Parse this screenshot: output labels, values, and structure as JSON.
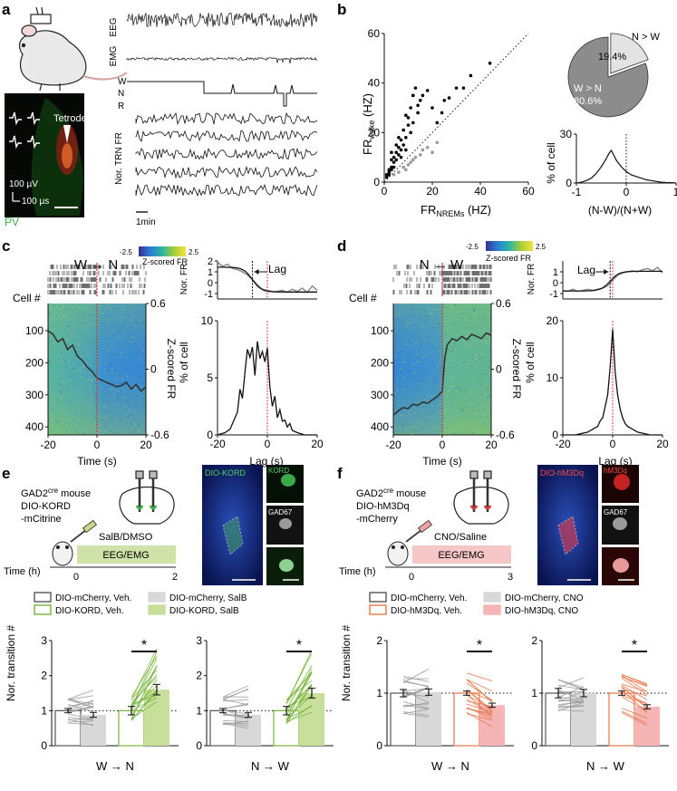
{
  "panels": {
    "a": {
      "label": "a",
      "traces": [
        "EEG",
        "EMG"
      ],
      "hypnogram": [
        "W",
        "N",
        "R"
      ],
      "trace_ylabel": "Nor. TRN FR",
      "scale_time": "1min",
      "scale_amp": "100 µV",
      "scale_dur": "100 µs",
      "histology_label": "Tetrode",
      "stain": "PV"
    },
    "b": {
      "label": "b",
      "pie_small_label": "N > W",
      "pie_small_pct": "19.4%",
      "pie_big_label": "W > N",
      "pie_big_pct": "80.6%"
    },
    "c": {
      "label": "c",
      "title": "W → N",
      "colorbar_min": "-2.5",
      "colorbar_max": "2.5",
      "colorbar_label": "Z-scored FR",
      "row_label": "Cell #",
      "heat_ylabel": "Z-scored FR",
      "heat_xlabel": "Time (s)",
      "nor_fr_label": "Nor. FR",
      "lag_annot": "Lag",
      "pct_label": "% of cell",
      "lag_xlabel": "Lag (s)"
    },
    "d": {
      "label": "d",
      "title": "N → W",
      "colorbar_min": "-2.5",
      "colorbar_max": "2.5",
      "colorbar_label": "Z-scored FR",
      "row_label": "Cell #",
      "heat_ylabel": "Z-scored FR",
      "heat_xlabel": "Time (s)",
      "nor_fr_label": "Nor. FR",
      "lag_annot": "Lag",
      "pct_label": "% of cell",
      "lag_xlabel": "Lag (s)"
    },
    "e": {
      "label": "e",
      "mouse_line1": "GAD2",
      "mouse_sup": "cre",
      "mouse_line1_tail": " mouse",
      "virus_line1": "DIO-KORD",
      "virus_line2": "-mCitrine",
      "drug": "SalB/DMSO",
      "session": "EEG/EMG",
      "time_label": "Time (h)",
      "time_start": "0",
      "time_end": "2",
      "img_main": "DIO-KORD",
      "img_top": "KORD",
      "img_mid": "GAD67",
      "legend": [
        "DIO-mCherry, Veh.",
        "DIO-mCherry, SalB",
        "DIO-KORD, Veh.",
        "DIO-KORD, SalB"
      ],
      "bar_ylabel": "Nor. transition #",
      "sig": "*"
    },
    "f": {
      "label": "f",
      "mouse_line1": "GAD2",
      "mouse_sup": "cre",
      "mouse_line1_tail": " mouse",
      "virus_line1": "DIO-hM3Dq",
      "virus_line2": "-mCherry",
      "drug": "CNO/Saline",
      "session": "EEG/EMG",
      "time_label": "Time (h)",
      "time_start": "0",
      "time_end": "3",
      "img_main": "DIO-hM3Dq",
      "img_top": "hM3Dq",
      "img_mid": "GAD67",
      "legend": [
        "DIO-mCherry, Veh.",
        "DIO-mCherry, CNO",
        "DIO-hM3Dq, Veh.",
        "DIO-hM3Dq, CNO"
      ],
      "bar_ylabel": "Nor. transition #",
      "sig": "*"
    }
  },
  "chart_data": [
    {
      "id": "b-scatter",
      "type": "scatter",
      "xlabel": "FR_NREMs (HZ)",
      "ylabel": "FR_wake (HZ)",
      "xlim": [
        0,
        60
      ],
      "ylim": [
        0,
        60
      ],
      "xticks": [
        0,
        20,
        40,
        60
      ],
      "yticks": [
        0,
        20,
        40,
        60
      ],
      "series": [
        {
          "name": "W > N",
          "color": "#000000",
          "points": [
            [
              1,
              2
            ],
            [
              2,
              4
            ],
            [
              2,
              5
            ],
            [
              3,
              6
            ],
            [
              3,
              5
            ],
            [
              4,
              8
            ],
            [
              4,
              10
            ],
            [
              5,
              9
            ],
            [
              5,
              12
            ],
            [
              6,
              11
            ],
            [
              6,
              14
            ],
            [
              7,
              13
            ],
            [
              7,
              17
            ],
            [
              8,
              15
            ],
            [
              8,
              21
            ],
            [
              9,
              18
            ],
            [
              10,
              23
            ],
            [
              10,
              26
            ],
            [
              11,
              30
            ],
            [
              12,
              24
            ],
            [
              12,
              35
            ],
            [
              13,
              38
            ],
            [
              14,
              28
            ],
            [
              15,
              33
            ],
            [
              16,
              35
            ],
            [
              18,
              37
            ],
            [
              20,
              30
            ],
            [
              22,
              24
            ],
            [
              24,
              28
            ],
            [
              25,
              33
            ],
            [
              27,
              34
            ],
            [
              30,
              38
            ],
            [
              33,
              38
            ],
            [
              36,
              43
            ],
            [
              44,
              48
            ],
            [
              3,
              9
            ],
            [
              5,
              15
            ],
            [
              6,
              18
            ],
            [
              9,
              27
            ],
            [
              11,
              20
            ],
            [
              14,
              31
            ],
            [
              4,
              6
            ],
            [
              2,
              3
            ],
            [
              1,
              3
            ],
            [
              7,
              10
            ],
            [
              9,
              13
            ],
            [
              3,
              12
            ]
          ]
        },
        {
          "name": "N > W",
          "color": "#999999",
          "points": [
            [
              4,
              3
            ],
            [
              6,
              4
            ],
            [
              8,
              6
            ],
            [
              10,
              7
            ],
            [
              12,
              9
            ],
            [
              13,
              10
            ],
            [
              15,
              11
            ],
            [
              16,
              13
            ],
            [
              18,
              14
            ],
            [
              20,
              12
            ],
            [
              22,
              16
            ],
            [
              9,
              5
            ],
            [
              11,
              8
            ]
          ]
        }
      ]
    },
    {
      "id": "b-pie",
      "type": "pie",
      "labels": [
        "N > W",
        "W > N"
      ],
      "values": [
        19.4,
        80.6
      ]
    },
    {
      "id": "b-dist",
      "type": "line",
      "xlabel": "(N-W)/(N+W)",
      "ylabel": "% of cell",
      "xlim": [
        -1,
        1
      ],
      "ylim": [
        0,
        30
      ],
      "xticks": [
        -1,
        0,
        1
      ],
      "yticks": [
        0,
        15,
        30
      ],
      "x": [
        -1,
        -0.9,
        -0.8,
        -0.7,
        -0.6,
        -0.5,
        -0.4,
        -0.35,
        -0.3,
        -0.25,
        -0.2,
        -0.1,
        0,
        0.1,
        0.2,
        0.3,
        0.4,
        0.5,
        0.6,
        0.7,
        0.8,
        0.9,
        1
      ],
      "y": [
        0,
        0.5,
        1.5,
        3,
        6,
        10,
        15,
        18,
        20,
        17,
        14,
        10,
        7,
        5,
        4,
        3,
        2,
        1.5,
        1,
        0.5,
        0.3,
        0.2,
        0
      ]
    },
    {
      "id": "c-heat-mean",
      "type": "line",
      "xlabel": "Time (s)",
      "ylabel": "Z-scored FR",
      "xlim": [
        -20,
        20
      ],
      "ylim": [
        -0.6,
        0.6
      ],
      "xticks": [
        -20,
        0,
        20
      ],
      "yticks": [
        -0.6,
        0,
        0.6
      ],
      "x": [
        -20,
        -18,
        -16,
        -14,
        -12,
        -10,
        -8,
        -6,
        -4,
        -2,
        0,
        2,
        4,
        6,
        8,
        10,
        12,
        14,
        16,
        18,
        20
      ],
      "y": [
        0.35,
        0.32,
        0.25,
        0.28,
        0.18,
        0.22,
        0.12,
        0.08,
        0.02,
        -0.02,
        -0.08,
        -0.1,
        -0.12,
        -0.14,
        -0.16,
        -0.15,
        -0.12,
        -0.18,
        -0.14,
        -0.2,
        -0.16
      ]
    },
    {
      "id": "c-norfr",
      "type": "line",
      "ylabel": "Nor. FR",
      "xlim": [
        -20,
        20
      ],
      "ylim": [
        -1.5,
        2
      ],
      "yticks": [
        -1,
        0,
        1,
        2
      ],
      "x": [
        -20,
        -18,
        -16,
        -14,
        -12,
        -10,
        -8,
        -6,
        -4,
        -2,
        0,
        2,
        4,
        6,
        8,
        10,
        12,
        14,
        16,
        18,
        20
      ],
      "y": [
        1.9,
        1.5,
        1.7,
        1.3,
        1.2,
        1.0,
        0.7,
        0.3,
        -0.2,
        -0.6,
        -0.7,
        -0.8,
        -0.8,
        -0.7,
        -0.9,
        -0.6,
        -0.8,
        -0.5,
        -0.9,
        -0.3,
        -0.7
      ]
    },
    {
      "id": "c-lag",
      "type": "line",
      "xlabel": "Lag (s)",
      "ylabel": "% of cell",
      "xlim": [
        -20,
        20
      ],
      "ylim": [
        0,
        10
      ],
      "xticks": [
        -20,
        0,
        20
      ],
      "yticks": [
        0,
        5,
        10
      ],
      "x": [
        -20,
        -17,
        -15,
        -13,
        -12,
        -11,
        -10,
        -9,
        -8,
        -7,
        -6,
        -5,
        -4,
        -3,
        -2,
        -1,
        0,
        1,
        2,
        3,
        4,
        5,
        6,
        7,
        8,
        9,
        10,
        12,
        15,
        20
      ],
      "y": [
        0,
        0.2,
        0.5,
        1.5,
        2,
        4,
        3.2,
        5.5,
        7.5,
        6.8,
        7.7,
        5.2,
        8.2,
        6.7,
        7.3,
        6.4,
        7.6,
        4.2,
        2.5,
        3.4,
        1.5,
        2.2,
        1.2,
        1.3,
        0.7,
        1.0,
        0.4,
        0.2,
        0,
        0
      ]
    },
    {
      "id": "d-heat-mean",
      "type": "line",
      "xlabel": "Time (s)",
      "ylabel": "Z-scored FR",
      "xlim": [
        -20,
        20
      ],
      "ylim": [
        -0.6,
        0.6
      ],
      "xticks": [
        -20,
        0,
        20
      ],
      "yticks": [
        -0.6,
        0,
        0.6
      ],
      "x": [
        -20,
        -18,
        -16,
        -14,
        -12,
        -10,
        -8,
        -6,
        -4,
        -2,
        0,
        1,
        2,
        4,
        6,
        8,
        10,
        12,
        14,
        16,
        18,
        20
      ],
      "y": [
        -0.42,
        -0.38,
        -0.35,
        -0.36,
        -0.32,
        -0.33,
        -0.3,
        -0.31,
        -0.28,
        -0.25,
        -0.2,
        0.1,
        0.22,
        0.28,
        0.26,
        0.3,
        0.27,
        0.32,
        0.3,
        0.28,
        0.33,
        0.31
      ]
    },
    {
      "id": "d-norfr",
      "type": "line",
      "ylabel": "Nor. FR",
      "xlim": [
        -20,
        20
      ],
      "ylim": [
        -1.5,
        2
      ],
      "yticks": [
        -1,
        0,
        1
      ],
      "x": [
        -20,
        -18,
        -16,
        -14,
        -12,
        -10,
        -8,
        -6,
        -4,
        -2,
        0,
        2,
        4,
        6,
        8,
        10,
        12,
        14,
        16,
        18,
        20
      ],
      "y": [
        -0.7,
        -0.8,
        -0.6,
        -0.8,
        -0.7,
        -0.6,
        -0.7,
        -0.6,
        -0.5,
        -0.3,
        0.2,
        0.7,
        0.9,
        1.0,
        1.1,
        1.0,
        1.2,
        1.3,
        1.1,
        1.4,
        0.9
      ]
    },
    {
      "id": "d-lag",
      "type": "line",
      "xlabel": "Lag (s)",
      "ylabel": "% of cell",
      "xlim": [
        -20,
        20
      ],
      "ylim": [
        0,
        20
      ],
      "xticks": [
        -20,
        0,
        20
      ],
      "yticks": [
        0,
        10,
        20
      ],
      "x": [
        -20,
        -15,
        -12,
        -10,
        -8,
        -6,
        -5,
        -4,
        -3,
        -2,
        -1,
        0,
        1,
        2,
        3,
        4,
        5,
        6,
        8,
        10,
        12,
        15,
        20
      ],
      "y": [
        0,
        0,
        0.3,
        0.5,
        1,
        1.5,
        2.5,
        3,
        5,
        7,
        12,
        18.5,
        11,
        7,
        4.5,
        3,
        2,
        1.5,
        1,
        0.5,
        0.3,
        0,
        0
      ]
    },
    {
      "id": "e-wn",
      "type": "bar",
      "xlabel": "W → N",
      "ylabel": "Nor. transition #",
      "ylim": [
        0,
        3
      ],
      "yticks": [
        0,
        1,
        2,
        3
      ],
      "categories": [
        "DIO-mCherry, Veh.",
        "DIO-mCherry, SalB",
        "DIO-KORD, Veh.",
        "DIO-KORD, SalB"
      ],
      "values": [
        1.0,
        0.88,
        1.0,
        1.6
      ],
      "errors": [
        0.06,
        0.07,
        0.12,
        0.15
      ]
    },
    {
      "id": "e-nw",
      "type": "bar",
      "xlabel": "N → W",
      "ylim": [
        0,
        3
      ],
      "yticks": [
        0,
        1,
        2,
        3
      ],
      "categories": [
        "DIO-mCherry, Veh.",
        "DIO-mCherry, SalB",
        "DIO-KORD, Veh.",
        "DIO-KORD, SalB"
      ],
      "values": [
        1.0,
        0.88,
        1.0,
        1.5
      ],
      "errors": [
        0.06,
        0.07,
        0.12,
        0.14
      ]
    },
    {
      "id": "f-wn",
      "type": "bar",
      "xlabel": "W → N",
      "ylabel": "Nor. transition #",
      "ylim": [
        0,
        2
      ],
      "yticks": [
        0,
        1,
        2
      ],
      "categories": [
        "DIO-mCherry, Veh.",
        "DIO-mCherry, CNO",
        "DIO-hM3Dq, Veh.",
        "DIO-hM3Dq, CNO"
      ],
      "values": [
        1.0,
        1.02,
        1.0,
        0.77
      ],
      "errors": [
        0.07,
        0.06,
        0.04,
        0.04
      ]
    },
    {
      "id": "f-nw",
      "type": "bar",
      "xlabel": "N → W",
      "ylim": [
        0,
        2
      ],
      "yticks": [
        0,
        1,
        2
      ],
      "categories": [
        "DIO-mCherry, Veh.",
        "DIO-mCherry, CNO",
        "DIO-hM3Dq, Veh.",
        "DIO-hM3Dq, CNO"
      ],
      "values": [
        1.0,
        1.0,
        1.0,
        0.74
      ],
      "errors": [
        0.09,
        0.07,
        0.04,
        0.04
      ]
    }
  ]
}
